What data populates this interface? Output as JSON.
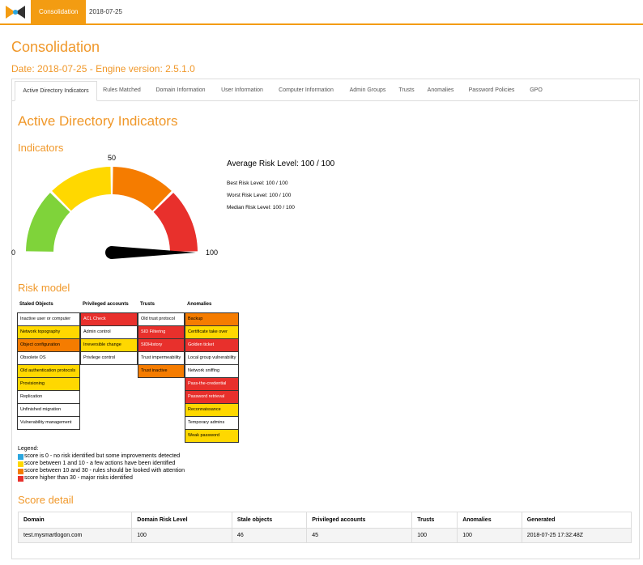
{
  "nav": {
    "active": "Consolidation",
    "date": "2018-07-25"
  },
  "header": {
    "title": "Consolidation",
    "subtitle": "Date: 2018-07-25 - Engine version: 2.5.1.0"
  },
  "tabs": [
    "Active Directory Indicators",
    "Rules Matched",
    "Domain Information",
    "User Information",
    "Computer Information",
    "Admin Groups",
    "Trusts",
    "Anomalies",
    "Password Policies",
    "GPO"
  ],
  "section": {
    "title": "Active Directory Indicators",
    "indicators": "Indicators",
    "risk_model": "Risk model",
    "score_detail": "Score detail"
  },
  "gauge": {
    "min": 0,
    "mid": 50,
    "max": 100,
    "value": 100
  },
  "levels": {
    "average": "Average Risk Level: 100 / 100",
    "best": "Best Risk Level: 100 / 100",
    "worst": "Worst Risk Level: 100 / 100",
    "median": "Median Risk Level: 100 / 100"
  },
  "risk_model": [
    {
      "name": "Staled Objects",
      "cells": [
        {
          "text": "Inactive user or computer",
          "color": "#ffffff"
        },
        {
          "text": "Network topography",
          "color": "#ffd800"
        },
        {
          "text": "Object configuration",
          "color": "#f57c00"
        },
        {
          "text": "Obsolete OS",
          "color": "#ffffff"
        },
        {
          "text": "Old authentication protocols",
          "color": "#ffd800"
        },
        {
          "text": "Provisioning",
          "color": "#ffd800"
        },
        {
          "text": "Replication",
          "color": "#ffffff"
        },
        {
          "text": "Unfinished migration",
          "color": "#ffffff"
        },
        {
          "text": "Vulnerability management",
          "color": "#ffffff"
        }
      ]
    },
    {
      "name": "Privileged accounts",
      "cells": [
        {
          "text": "ACL Check",
          "color": "#e8302c"
        },
        {
          "text": "Admin control",
          "color": "#ffffff"
        },
        {
          "text": "Irreversible change",
          "color": "#ffd800"
        },
        {
          "text": "Privilege control",
          "color": "#ffffff"
        }
      ]
    },
    {
      "name": "Trusts",
      "cells": [
        {
          "text": "Old trust protocol",
          "color": "#ffffff"
        },
        {
          "text": "SID Filtering",
          "color": "#e8302c"
        },
        {
          "text": "SIDHistory",
          "color": "#e8302c"
        },
        {
          "text": "Trust impermeability",
          "color": "#ffffff"
        },
        {
          "text": "Trust inactive",
          "color": "#f57c00"
        }
      ]
    },
    {
      "name": "Anomalies",
      "cells": [
        {
          "text": "Backup",
          "color": "#f57c00"
        },
        {
          "text": "Certificate take over",
          "color": "#ffd800"
        },
        {
          "text": "Golden ticket",
          "color": "#e8302c"
        },
        {
          "text": "Local group vulnerability",
          "color": "#ffffff"
        },
        {
          "text": "Network sniffing",
          "color": "#ffffff"
        },
        {
          "text": "Pass-the-credential",
          "color": "#e8302c"
        },
        {
          "text": "Password retrieval",
          "color": "#e8302c"
        },
        {
          "text": "Reconnaissance",
          "color": "#ffd800"
        },
        {
          "text": "Temporary admins",
          "color": "#ffffff"
        },
        {
          "text": "Weak password",
          "color": "#ffd800"
        }
      ]
    }
  ],
  "legend": {
    "title": "Legend:",
    "items": [
      {
        "text": "score is 0 - no risk identified but some improvements detected",
        "color": "#2ba6de"
      },
      {
        "text": "score between 1 and 10 - a few actions have been identified",
        "color": "#ffd800"
      },
      {
        "text": "score between 10 and 30 - rules should be looked with attention",
        "color": "#f57c00"
      },
      {
        "text": "score higher than 30 - major risks identified",
        "color": "#e8302c"
      }
    ]
  },
  "score_table": {
    "headers": [
      "Domain",
      "Domain Risk Level",
      "Stale objects",
      "Privileged accounts",
      "Trusts",
      "Anomalies",
      "Generated"
    ],
    "rows": [
      [
        "test.mysmartlogon.com",
        100,
        46,
        45,
        100,
        100,
        "2018-07-25 17:32:48Z"
      ]
    ]
  }
}
